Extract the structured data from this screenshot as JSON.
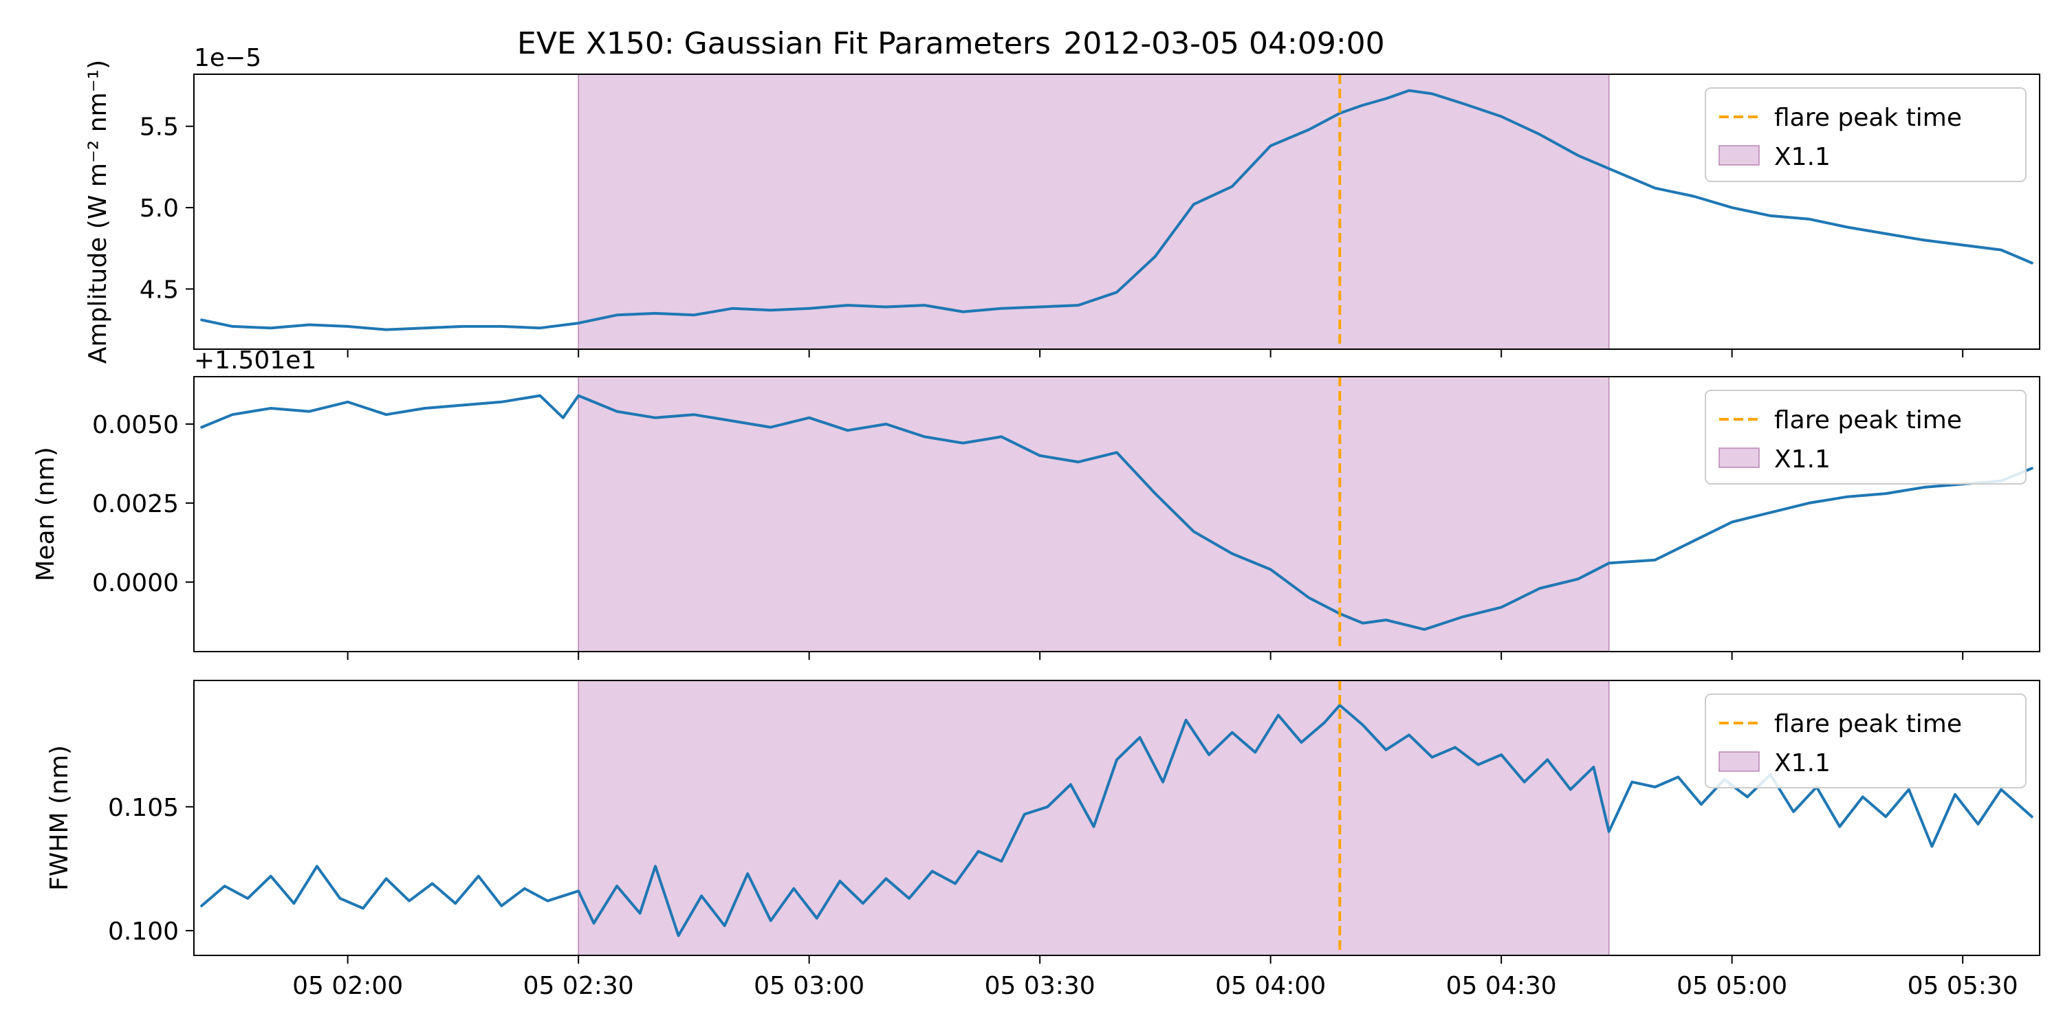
{
  "chart_data": {
    "type": "line",
    "title": "EVE X150: Gaussian Fit Parameters",
    "timestamp": "2012-03-05 04:09:00",
    "x_unit": "minutes after 2012-03-05 00:00 UT",
    "xlim": [
      100.0,
      340.0
    ],
    "x_ticks": [
      {
        "value": 120,
        "label": "05 02:00"
      },
      {
        "value": 150,
        "label": "05 02:30"
      },
      {
        "value": 180,
        "label": "05 03:00"
      },
      {
        "value": 210,
        "label": "05 03:30"
      },
      {
        "value": 240,
        "label": "05 04:00"
      },
      {
        "value": 270,
        "label": "05 04:30"
      },
      {
        "value": 300,
        "label": "05 05:00"
      },
      {
        "value": 330,
        "label": "05 05:30"
      }
    ],
    "flare_peak": {
      "x": 249,
      "label": "flare peak time",
      "color": "#ffa500"
    },
    "flare_window": {
      "x0": 150,
      "x1": 284,
      "label": "X1.1",
      "color": "#c88dc3"
    },
    "line_color": "#1f77b4",
    "panels": [
      {
        "key": "amplitude",
        "ylabel": "Amplitude (W m⁻² nm⁻¹)",
        "offset_text": "1e−5",
        "ylim": [
          4.13,
          5.82
        ],
        "y_ticks": [
          {
            "value": 4.5,
            "label": "4.5"
          },
          {
            "value": 5.0,
            "label": "5.0"
          },
          {
            "value": 5.5,
            "label": "5.5"
          }
        ],
        "x": [
          101,
          105,
          110,
          115,
          120,
          125,
          130,
          135,
          140,
          145,
          150,
          155,
          160,
          165,
          170,
          175,
          180,
          185,
          190,
          195,
          200,
          205,
          210,
          215,
          220,
          225,
          230,
          235,
          240,
          245,
          249,
          252,
          255,
          258,
          261,
          265,
          270,
          275,
          280,
          284,
          290,
          295,
          300,
          305,
          310,
          315,
          320,
          325,
          330,
          335,
          339
        ],
        "y": [
          4.31,
          4.27,
          4.26,
          4.28,
          4.27,
          4.25,
          4.26,
          4.27,
          4.27,
          4.26,
          4.29,
          4.34,
          4.35,
          4.34,
          4.38,
          4.37,
          4.38,
          4.4,
          4.39,
          4.4,
          4.36,
          4.38,
          4.39,
          4.4,
          4.48,
          4.7,
          5.02,
          5.13,
          5.38,
          5.48,
          5.58,
          5.63,
          5.67,
          5.72,
          5.7,
          5.64,
          5.56,
          5.45,
          5.32,
          5.24,
          5.12,
          5.07,
          5.0,
          4.95,
          4.93,
          4.88,
          4.84,
          4.8,
          4.77,
          4.74,
          4.66
        ]
      },
      {
        "key": "mean",
        "ylabel": "Mean (nm)",
        "offset_text": "+1.501e1",
        "ylim": [
          -0.0022,
          0.0065
        ],
        "y_ticks": [
          {
            "value": 0.0,
            "label": "0.0000"
          },
          {
            "value": 0.0025,
            "label": "0.0025"
          },
          {
            "value": 0.005,
            "label": "0.0050"
          }
        ],
        "x": [
          101,
          105,
          110,
          115,
          120,
          125,
          130,
          135,
          140,
          145,
          148,
          150,
          155,
          160,
          165,
          170,
          175,
          180,
          185,
          190,
          195,
          200,
          205,
          210,
          215,
          220,
          225,
          230,
          235,
          240,
          245,
          249,
          252,
          255,
          260,
          265,
          270,
          275,
          280,
          284,
          290,
          295,
          300,
          305,
          310,
          315,
          320,
          325,
          330,
          335,
          339
        ],
        "y": [
          0.0049,
          0.0053,
          0.0055,
          0.0054,
          0.0057,
          0.0053,
          0.0055,
          0.0056,
          0.0057,
          0.0059,
          0.0052,
          0.0059,
          0.0054,
          0.0052,
          0.0053,
          0.0051,
          0.0049,
          0.0052,
          0.0048,
          0.005,
          0.0046,
          0.0044,
          0.0046,
          0.004,
          0.0038,
          0.0041,
          0.0028,
          0.0016,
          0.0009,
          0.0004,
          -0.0005,
          -0.001,
          -0.0013,
          -0.0012,
          -0.0015,
          -0.0011,
          -0.0008,
          -0.0002,
          0.0001,
          0.0006,
          0.0007,
          0.0013,
          0.0019,
          0.0022,
          0.0025,
          0.0027,
          0.0028,
          0.003,
          0.0031,
          0.0032,
          0.0036
        ]
      },
      {
        "key": "fwhm",
        "ylabel": "FWHM (nm)",
        "offset_text": "",
        "ylim": [
          0.099,
          0.1101
        ],
        "y_ticks": [
          {
            "value": 0.1,
            "label": "0.100"
          },
          {
            "value": 0.105,
            "label": "0.105"
          }
        ],
        "x": [
          101,
          104,
          107,
          110,
          113,
          116,
          119,
          122,
          125,
          128,
          131,
          134,
          137,
          140,
          143,
          146,
          150,
          152,
          155,
          158,
          160,
          163,
          166,
          169,
          172,
          175,
          178,
          181,
          184,
          187,
          190,
          193,
          196,
          199,
          202,
          205,
          208,
          211,
          214,
          217,
          220,
          223,
          226,
          229,
          232,
          235,
          238,
          241,
          244,
          247,
          249,
          252,
          255,
          258,
          261,
          264,
          267,
          270,
          273,
          276,
          279,
          282,
          284,
          287,
          290,
          293,
          296,
          299,
          302,
          305,
          308,
          311,
          314,
          317,
          320,
          323,
          326,
          329,
          332,
          335,
          339
        ],
        "y": [
          0.101,
          0.1018,
          0.1013,
          0.1022,
          0.1011,
          0.1026,
          0.1013,
          0.1009,
          0.1021,
          0.1012,
          0.1019,
          0.1011,
          0.1022,
          0.101,
          0.1017,
          0.1012,
          0.1016,
          0.1003,
          0.1018,
          0.1007,
          0.1026,
          0.0998,
          0.1014,
          0.1002,
          0.1023,
          0.1004,
          0.1017,
          0.1005,
          0.102,
          0.1011,
          0.1021,
          0.1013,
          0.1024,
          0.1019,
          0.1032,
          0.1028,
          0.1047,
          0.105,
          0.1059,
          0.1042,
          0.1069,
          0.1078,
          0.106,
          0.1085,
          0.1071,
          0.108,
          0.1072,
          0.1087,
          0.1076,
          0.1084,
          0.1091,
          0.1083,
          0.1073,
          0.1079,
          0.107,
          0.1074,
          0.1067,
          0.1071,
          0.106,
          0.1069,
          0.1057,
          0.1066,
          0.104,
          0.106,
          0.1058,
          0.1062,
          0.1051,
          0.1061,
          0.1054,
          0.1063,
          0.1048,
          0.1058,
          0.1042,
          0.1054,
          0.1046,
          0.1057,
          0.1034,
          0.1055,
          0.1043,
          0.1057,
          0.1046
        ]
      }
    ],
    "legend": {
      "placement": "upper right",
      "entries": [
        "flare peak time",
        "X1.1"
      ]
    }
  }
}
